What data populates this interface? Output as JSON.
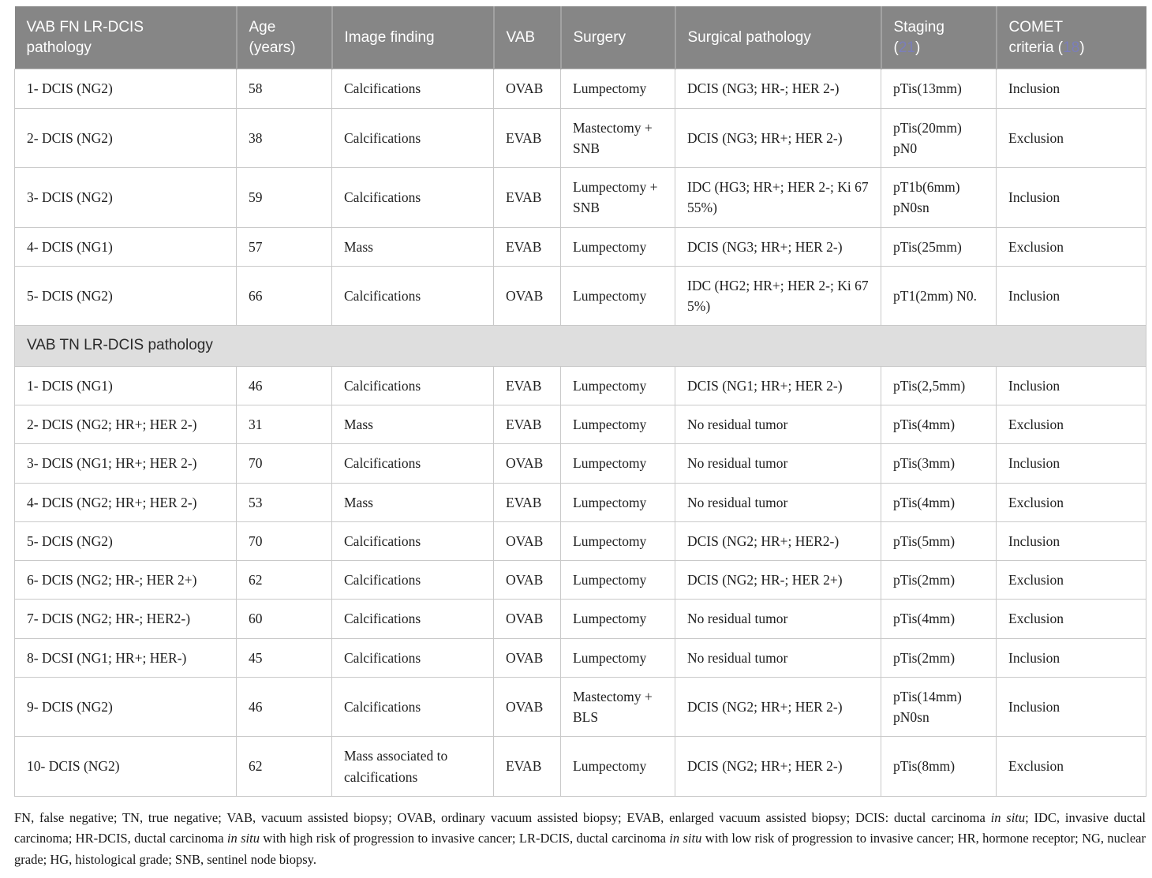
{
  "colors": {
    "header_bg": "#868686",
    "header_text": "#ffffff",
    "citation_link": "#7b7eba",
    "section_row_bg": "#dedede",
    "cell_border": "#c9c9c9",
    "body_text": "#202020"
  },
  "table": {
    "header": {
      "pathology": "VAB FN LR-DCIS\npathology",
      "age": "Age\n(years)",
      "image_finding": "Image finding",
      "vab": "VAB",
      "surgery": "Surgery",
      "surgical_pathology": "Surgical pathology",
      "staging_prefix": "Staging\n(",
      "staging_ref": "21",
      "staging_suffix": ")",
      "comet_prefix": "COMET\ncriteria (",
      "comet_ref": "18",
      "comet_suffix": ")"
    },
    "sections": [
      {
        "header": null,
        "rows": [
          [
            "1- DCIS (NG2)",
            "58",
            "Calcifications",
            "OVAB",
            "Lumpectomy",
            "DCIS (NG3; HR-; HER 2-)",
            "pTis(13mm)",
            "Inclusion"
          ],
          [
            "2- DCIS (NG2)",
            "38",
            "Calcifications",
            "EVAB",
            "Mastectomy + SNB",
            "DCIS (NG3; HR+; HER 2-)",
            "pTis(20mm) pN0",
            "Exclusion"
          ],
          [
            "3- DCIS (NG2)",
            "59",
            "Calcifications",
            "EVAB",
            "Lumpectomy + SNB",
            "IDC (HG3; HR+; HER 2-; Ki 67 55%)",
            "pT1b(6mm) pN0sn",
            "Inclusion"
          ],
          [
            "4- DCIS (NG1)",
            "57",
            "Mass",
            "EVAB",
            "Lumpectomy",
            "DCIS (NG3; HR+; HER 2-)",
            "pTis(25mm)",
            "Exclusion"
          ],
          [
            "5- DCIS (NG2)",
            "66",
            "Calcifications",
            "OVAB",
            "Lumpectomy",
            "IDC (HG2; HR+; HER 2-; Ki 67 5%)",
            "pT1(2mm) N0.",
            "Inclusion"
          ]
        ]
      },
      {
        "header": "VAB TN LR-DCIS pathology",
        "rows": [
          [
            "1- DCIS (NG1)",
            "46",
            "Calcifications",
            "EVAB",
            "Lumpectomy",
            "DCIS (NG1; HR+; HER 2-)",
            "pTis(2,5mm)",
            "Inclusion"
          ],
          [
            "2- DCIS (NG2; HR+; HER 2-)",
            "31",
            "Mass",
            "EVAB",
            "Lumpectomy",
            "No residual tumor",
            "pTis(4mm)",
            "Exclusion"
          ],
          [
            "3- DCIS (NG1; HR+; HER 2-)",
            "70",
            "Calcifications",
            "OVAB",
            "Lumpectomy",
            "No residual tumor",
            "pTis(3mm)",
            "Inclusion"
          ],
          [
            "4- DCIS (NG2; HR+; HER 2-)",
            "53",
            "Mass",
            "EVAB",
            "Lumpectomy",
            "No residual tumor",
            "pTis(4mm)",
            "Exclusion"
          ],
          [
            "5- DCIS (NG2)",
            "70",
            "Calcifications",
            "OVAB",
            "Lumpectomy",
            "DCIS (NG2; HR+; HER2-)",
            "pTis(5mm)",
            "Inclusion"
          ],
          [
            "6- DCIS (NG2; HR-; HER 2+)",
            "62",
            "Calcifications",
            "OVAB",
            "Lumpectomy",
            "DCIS (NG2; HR-; HER 2+)",
            "pTis(2mm)",
            "Exclusion"
          ],
          [
            "7- DCIS (NG2; HR-; HER2-)",
            "60",
            "Calcifications",
            "OVAB",
            "Lumpectomy",
            "No residual tumor",
            "pTis(4mm)",
            "Exclusion"
          ],
          [
            "8- DCSI (NG1; HR+; HER-)",
            "45",
            "Calcifications",
            "OVAB",
            "Lumpectomy",
            "No residual tumor",
            "pTis(2mm)",
            "Inclusion"
          ],
          [
            "9- DCIS (NG2)",
            "46",
            "Calcifications",
            "OVAB",
            "Mastectomy + BLS",
            "DCIS (NG2; HR+; HER 2-)",
            "pTis(14mm) pN0sn",
            "Inclusion"
          ],
          [
            "10- DCIS (NG2)",
            "62",
            "Mass associated to calcifications",
            "EVAB",
            "Lumpectomy",
            "DCIS (NG2; HR+; HER 2-)",
            "pTis(8mm)",
            "Exclusion"
          ]
        ]
      }
    ]
  },
  "footnote": {
    "segments": [
      "FN, false negative; TN, true negative; VAB, vacuum assisted biopsy; OVAB, ordinary vacuum assisted biopsy; EVAB, enlarged vacuum assisted biopsy; DCIS: ductal carcinoma ",
      "in situ",
      "; IDC, invasive ductal carcinoma; HR-DCIS, ductal carcinoma ",
      "in situ",
      " with high risk of progression to invasive cancer; LR-DCIS, ductal carcinoma ",
      "in situ",
      " with low risk of progression to invasive cancer; HR, hormone receptor; NG, nuclear grade; HG, histological grade; SNB, sentinel node biopsy."
    ]
  }
}
